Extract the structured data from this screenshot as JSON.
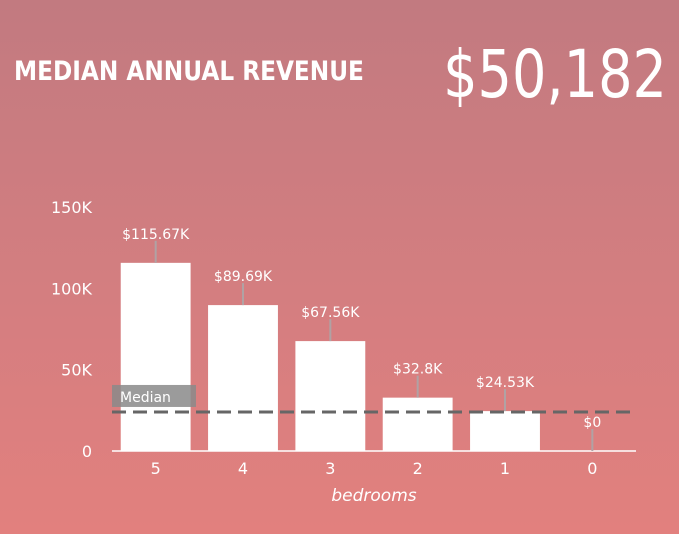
{
  "header": {
    "title": "MEDIAN ANNUAL REVENUE",
    "value": "$50,182"
  },
  "chart_data": {
    "type": "bar",
    "categories": [
      "5",
      "4",
      "3",
      "2",
      "1",
      "0"
    ],
    "values": [
      115670,
      89690,
      67560,
      32800,
      24530,
      0
    ],
    "data_labels": [
      "$115.67K",
      "$89.69K",
      "$67.56K",
      "$32.8K",
      "$24.53K",
      "$0"
    ],
    "xlabel": "bedrooms",
    "ylabel": "",
    "ylim": [
      0,
      150000
    ],
    "yticks": [
      0,
      50000,
      100000,
      150000
    ],
    "ytick_labels": [
      "0",
      "50K",
      "100K",
      "150K"
    ],
    "reference_line": {
      "label": "Median",
      "value": 24000
    },
    "bar_color": "#ffffff",
    "line_color": "#666666"
  }
}
